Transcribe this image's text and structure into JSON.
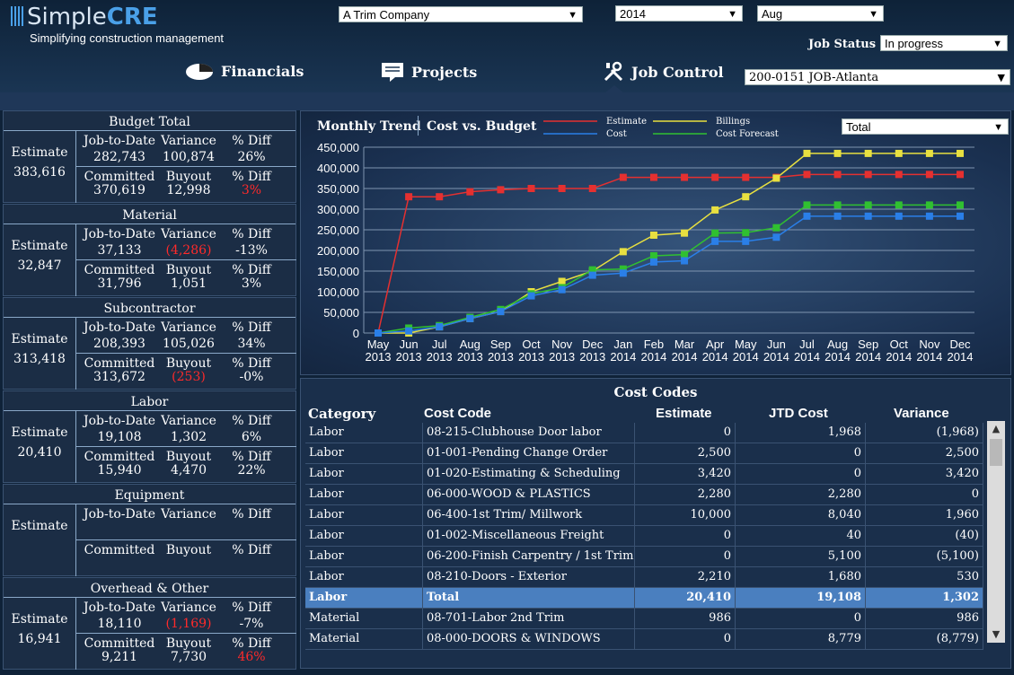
{
  "brand": {
    "name_a": "Simple",
    "name_b": "CRE",
    "tagline": "Simplifying construction management"
  },
  "filters": {
    "company": "A Trim Company",
    "year": "2014",
    "month": "Aug",
    "job_status_label": "Job Status",
    "job_status": "In progress",
    "job": "200-0151 JOB-Atlanta",
    "series_filter": "Total"
  },
  "nav": {
    "financials": "Financials",
    "projects": "Projects",
    "job_control": "Job Control"
  },
  "budget_sections": [
    {
      "title": "Budget Total",
      "estimate_label": "Estimate",
      "estimate": "383,616",
      "jtd_label": "Job-to-Date",
      "jtd": "282,743",
      "var_label": "Variance",
      "variance": "100,874",
      "diff_label": "% Diff",
      "diff": "26%",
      "committed_label": "Committed",
      "committed": "370,619",
      "buyout_label": "Buyout",
      "buyout": "12,998",
      "diff2_label": "% Diff",
      "diff2": "3%"
    },
    {
      "title": "Material",
      "estimate_label": "Estimate",
      "estimate": "32,847",
      "jtd_label": "Job-to-Date",
      "jtd": "37,133",
      "var_label": "Variance",
      "variance": "(4,286)",
      "diff_label": "% Diff",
      "diff": "-13%",
      "committed_label": "Committed",
      "committed": "31,796",
      "buyout_label": "Buyout",
      "buyout": "1,051",
      "diff2_label": "% Diff",
      "diff2": "3%"
    },
    {
      "title": "Subcontractor",
      "estimate_label": "Estimate",
      "estimate": "313,418",
      "jtd_label": "Job-to-Date",
      "jtd": "208,393",
      "var_label": "Variance",
      "variance": "105,026",
      "diff_label": "% Diff",
      "diff": "34%",
      "committed_label": "Committed",
      "committed": "313,672",
      "buyout_label": "Buyout",
      "buyout": "(253)",
      "diff2_label": "% Diff",
      "diff2": "-0%"
    },
    {
      "title": "Labor",
      "estimate_label": "Estimate",
      "estimate": "20,410",
      "jtd_label": "Job-to-Date",
      "jtd": "19,108",
      "var_label": "Variance",
      "variance": "1,302",
      "diff_label": "% Diff",
      "diff": "6%",
      "committed_label": "Committed",
      "committed": "15,940",
      "buyout_label": "Buyout",
      "buyout": "4,470",
      "diff2_label": "% Diff",
      "diff2": "22%"
    },
    {
      "title": "Equipment",
      "estimate_label": "Estimate",
      "estimate": "",
      "jtd_label": "Job-to-Date",
      "jtd": "",
      "var_label": "Variance",
      "variance": "",
      "diff_label": "% Diff",
      "diff": "",
      "committed_label": "Committed",
      "committed": "",
      "buyout_label": "Buyout",
      "buyout": "",
      "diff2_label": "% Diff",
      "diff2": ""
    },
    {
      "title": "Overhead & Other",
      "estimate_label": "Estimate",
      "estimate": "16,941",
      "jtd_label": "Job-to-Date",
      "jtd": "18,110",
      "var_label": "Variance",
      "variance": "(1,169)",
      "diff_label": "% Diff",
      "diff": "-7%",
      "committed_label": "Committed",
      "committed": "9,211",
      "buyout_label": "Buyout",
      "buyout": "7,730",
      "diff2_label": "% Diff",
      "diff2": "46%"
    }
  ],
  "chart_tabs": {
    "trend": "Monthly Trend",
    "cost": "Cost vs. Budget"
  },
  "chart_data": {
    "type": "line",
    "categories": [
      "May 2013",
      "Jun 2013",
      "Jul 2013",
      "Aug 2013",
      "Sep 2013",
      "Oct 2013",
      "Nov 2013",
      "Dec 2013",
      "Jan 2014",
      "Feb 2014",
      "Mar 2014",
      "Apr 2014",
      "May 2014",
      "Jun 2014",
      "Jul 2014",
      "Aug 2014",
      "Sep 2014",
      "Oct 2014",
      "Nov 2014",
      "Dec 2014"
    ],
    "ylim": [
      0,
      450000
    ],
    "yticks": [
      0,
      50000,
      100000,
      150000,
      200000,
      250000,
      300000,
      350000,
      400000,
      450000
    ],
    "ytick_labels": [
      "0",
      "50,000",
      "100,000",
      "150,000",
      "200,000",
      "250,000",
      "300,000",
      "350,000",
      "400,000",
      "450,000"
    ],
    "legend_position": "top",
    "series": [
      {
        "name": "Estimate",
        "color": "#e53030",
        "values": [
          0,
          330000,
          330000,
          342000,
          347000,
          350000,
          350000,
          350000,
          377000,
          377000,
          377000,
          377000,
          377000,
          377000,
          384000,
          384000,
          384000,
          384000,
          384000,
          384000
        ]
      },
      {
        "name": "Cost",
        "color": "#2a7fe8",
        "values": [
          0,
          5000,
          15000,
          35000,
          52000,
          90000,
          105000,
          140000,
          145000,
          172000,
          175000,
          222000,
          222000,
          232000,
          283000,
          283000,
          283000,
          283000,
          283000,
          283000
        ]
      },
      {
        "name": "Billings",
        "color": "#e8e040",
        "values": [
          0,
          0,
          15000,
          35000,
          52000,
          100000,
          125000,
          150000,
          197000,
          237000,
          242000,
          298000,
          330000,
          375000,
          435000,
          435000,
          435000,
          435000,
          435000,
          435000
        ]
      },
      {
        "name": "Cost Forecast",
        "color": "#30c030",
        "values": [
          0,
          12000,
          18000,
          38000,
          57000,
          95000,
          110000,
          153000,
          155000,
          187000,
          190000,
          242000,
          243000,
          255000,
          310000,
          310000,
          310000,
          310000,
          310000,
          310000
        ]
      }
    ]
  },
  "cost_codes": {
    "title": "Cost Codes",
    "headers": [
      "Category",
      "Cost Code",
      "Estimate",
      "JTD Cost",
      "Variance"
    ],
    "rows": [
      [
        "Labor",
        "08-215-Clubhouse Door labor",
        "0",
        "1,968",
        "(1,968)"
      ],
      [
        "Labor",
        "01-001-Pending Change Order",
        "2,500",
        "0",
        "2,500"
      ],
      [
        "Labor",
        "01-020-Estimating & Scheduling",
        "3,420",
        "0",
        "3,420"
      ],
      [
        "Labor",
        "06-000-WOOD & PLASTICS",
        "2,280",
        "2,280",
        "0"
      ],
      [
        "Labor",
        "06-400-1st Trim/ Millwork",
        "10,000",
        "8,040",
        "1,960"
      ],
      [
        "Labor",
        "01-002-Miscellaneous Freight",
        "0",
        "40",
        "(40)"
      ],
      [
        "Labor",
        "06-200-Finish Carpentry / 1st Trim",
        "0",
        "5,100",
        "(5,100)"
      ],
      [
        "Labor",
        "08-210-Doors - Exterior",
        "2,210",
        "1,680",
        "530"
      ],
      [
        "Labor",
        "Total",
        "20,410",
        "19,108",
        "1,302"
      ],
      [
        "Material",
        "08-701-Labor 2nd Trim",
        "986",
        "0",
        "986"
      ],
      [
        "Material",
        "08-000-DOORS & WINDOWS",
        "0",
        "8,779",
        "(8,779)"
      ]
    ]
  }
}
